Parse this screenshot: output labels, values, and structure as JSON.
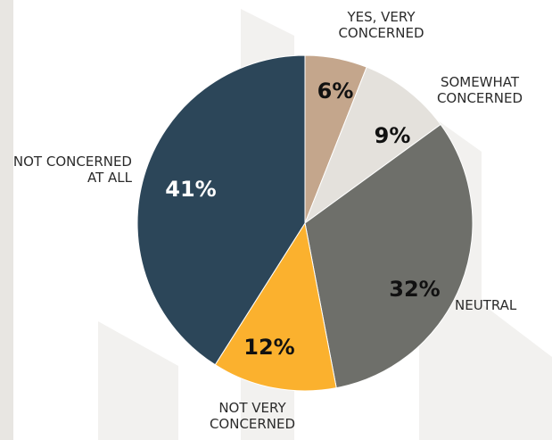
{
  "chart_data": {
    "type": "pie",
    "categories": [
      "YES, VERY CONCERNED",
      "SOMEWHAT CONCERNED",
      "NEUTRAL",
      "NOT VERY CONCERNED",
      "NOT CONCERNED AT ALL"
    ],
    "values": [
      6,
      9,
      32,
      12,
      41
    ],
    "value_labels": [
      "6%",
      "9%",
      "32%",
      "12%",
      "41%"
    ],
    "colors": [
      "#c4a68c",
      "#e4e1dc",
      "#6e6f6a",
      "#fbb12e",
      "#2c4659"
    ]
  }
}
